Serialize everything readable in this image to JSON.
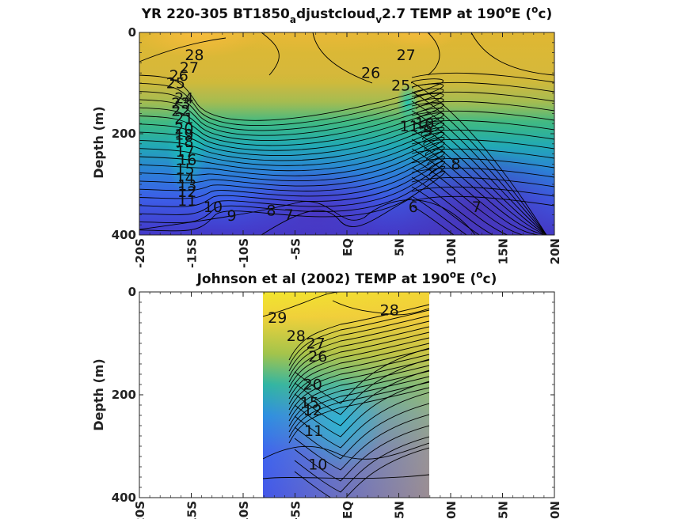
{
  "chart_data": [
    {
      "type": "contour",
      "title_parts": [
        "YR 220-305 BT1850",
        "a",
        "djustcloud",
        "v",
        "2.7 TEMP at 190",
        "o",
        "E (",
        "o",
        "c)"
      ],
      "ylabel": "Depth (m)",
      "xlim": [
        -20,
        20
      ],
      "ylim": [
        0,
        400
      ],
      "y_inverted": true,
      "yticks": [
        "0",
        "200",
        "400"
      ],
      "xticks": [
        "-20S",
        "-15S",
        "-10S",
        "-5S",
        "EQ",
        "5N",
        "10N",
        "15N",
        "20N"
      ],
      "colormap": "parula",
      "contour_labels": [
        {
          "text": "28",
          "lat": -14.7,
          "depth": 55
        },
        {
          "text": "27",
          "lat": -15.2,
          "depth": 80
        },
        {
          "text": "26",
          "lat": -16.2,
          "depth": 95
        },
        {
          "text": "25",
          "lat": -16.5,
          "depth": 110
        },
        {
          "text": "24",
          "lat": -15.7,
          "depth": 140
        },
        {
          "text": "23",
          "lat": -16.0,
          "depth": 150
        },
        {
          "text": "22",
          "lat": -16.0,
          "depth": 165
        },
        {
          "text": "21",
          "lat": -15.7,
          "depth": 180
        },
        {
          "text": "20",
          "lat": -15.7,
          "depth": 200
        },
        {
          "text": "19",
          "lat": -15.7,
          "depth": 212
        },
        {
          "text": "18",
          "lat": -15.7,
          "depth": 226
        },
        {
          "text": "17",
          "lat": -15.6,
          "depth": 245
        },
        {
          "text": "16",
          "lat": -15.4,
          "depth": 262
        },
        {
          "text": "15",
          "lat": -15.6,
          "depth": 280
        },
        {
          "text": "14",
          "lat": -15.6,
          "depth": 298
        },
        {
          "text": "13",
          "lat": -15.4,
          "depth": 312
        },
        {
          "text": "12",
          "lat": -15.4,
          "depth": 325
        },
        {
          "text": "11",
          "lat": -15.4,
          "depth": 342
        },
        {
          "text": "10",
          "lat": -12.9,
          "depth": 355
        },
        {
          "text": "9",
          "lat": -11.1,
          "depth": 372
        },
        {
          "text": "8",
          "lat": -7.3,
          "depth": 362
        },
        {
          "text": "7",
          "lat": -5.6,
          "depth": 370
        },
        {
          "text": "26",
          "lat": 2.3,
          "depth": 90
        },
        {
          "text": "27",
          "lat": 5.7,
          "depth": 55
        },
        {
          "text": "25",
          "lat": 5.2,
          "depth": 115
        },
        {
          "text": "11",
          "lat": 6.0,
          "depth": 195
        },
        {
          "text": "10",
          "lat": 7.5,
          "depth": 190
        },
        {
          "text": "9",
          "lat": 7.8,
          "depth": 205
        },
        {
          "text": "8",
          "lat": 10.5,
          "depth": 270
        },
        {
          "text": "7",
          "lat": 12.5,
          "depth": 355
        },
        {
          "text": "6",
          "lat": 6.4,
          "depth": 355
        }
      ]
    },
    {
      "type": "contour",
      "title_parts": [
        "Johnson et al (2002) TEMP at 190",
        "o",
        "E (",
        "o",
        "c)"
      ],
      "ylabel": "Depth (m)",
      "xlim": [
        -20,
        20
      ],
      "ylim": [
        0,
        400
      ],
      "y_inverted": true,
      "data_lat_range": [
        -8,
        8
      ],
      "yticks": [
        "0",
        "200",
        "400"
      ],
      "xticks": [
        "-20S",
        "-15S",
        "-10S",
        "-5S",
        "EQ",
        "5N",
        "10N",
        "15N",
        "20N"
      ],
      "colormap": "parula",
      "contour_labels": [
        {
          "text": "29",
          "lat": -6.7,
          "depth": 60
        },
        {
          "text": "28",
          "lat": -4.9,
          "depth": 95
        },
        {
          "text": "27",
          "lat": -3.0,
          "depth": 110
        },
        {
          "text": "28",
          "lat": 4.1,
          "depth": 45
        },
        {
          "text": "26",
          "lat": -2.8,
          "depth": 135
        },
        {
          "text": "20",
          "lat": -3.3,
          "depth": 190
        },
        {
          "text": "15",
          "lat": -3.6,
          "depth": 225
        },
        {
          "text": "12",
          "lat": -3.3,
          "depth": 240
        },
        {
          "text": "11",
          "lat": -3.2,
          "depth": 280
        },
        {
          "text": "10",
          "lat": -2.8,
          "depth": 345
        }
      ]
    }
  ]
}
